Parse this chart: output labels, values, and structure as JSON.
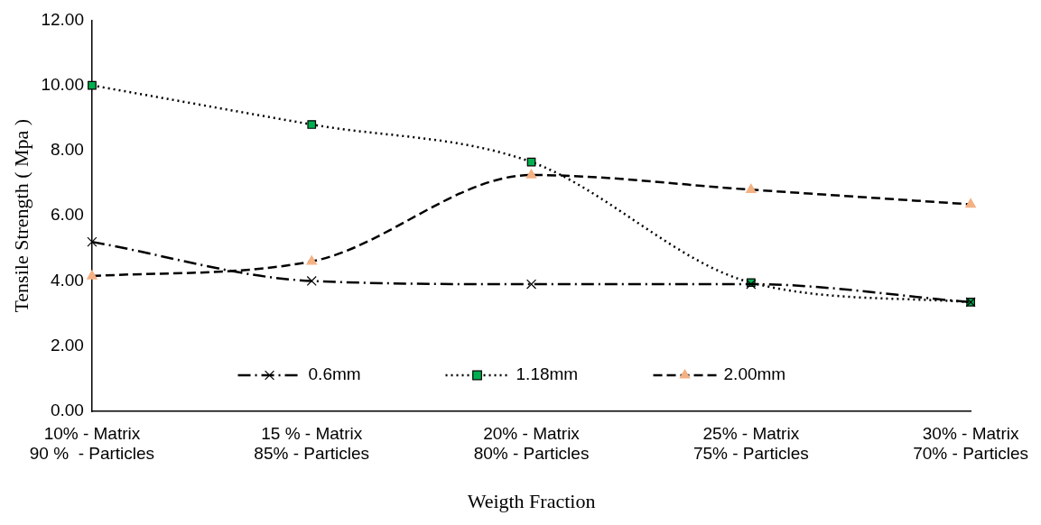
{
  "chart_data": {
    "type": "line",
    "xlabel": "Weigth Fraction",
    "ylabel": "Tensile Strength ( Mpa )",
    "categories": [
      "10% - Matrix\n90 %  - Particles",
      "15 % - Matrix\n85% - Particles",
      "20% - Matrix\n80% - Particles",
      "25% - Matrix\n75% - Particles",
      "30% - Matrix\n70% - Particles"
    ],
    "series": [
      {
        "name": "0.6mm",
        "color": "#000000",
        "marker": "cross",
        "line_style": "dashdot",
        "values": [
          5.2,
          4.0,
          3.9,
          3.9,
          3.35
        ]
      },
      {
        "name": "1.18mm",
        "color": "#00b050",
        "marker": "square",
        "line_style": "dotted",
        "values": [
          10.0,
          8.8,
          7.65,
          3.95,
          3.35
        ]
      },
      {
        "name": "2.00mm",
        "color": "#f4b183",
        "marker": "triangle",
        "line_style": "dashed",
        "values": [
          4.15,
          4.6,
          7.25,
          6.8,
          6.35
        ]
      }
    ],
    "ylim": [
      0,
      12
    ],
    "yticks": [
      {
        "value": 0,
        "label": "0.00"
      },
      {
        "value": 2,
        "label": "2.00"
      },
      {
        "value": 4,
        "label": "4.00"
      },
      {
        "value": 6,
        "label": "6.00"
      },
      {
        "value": 8,
        "label": "8.00"
      },
      {
        "value": 10,
        "label": "10.00"
      },
      {
        "value": 12,
        "label": "12.00"
      }
    ],
    "grid": false,
    "legend": "bottom"
  }
}
